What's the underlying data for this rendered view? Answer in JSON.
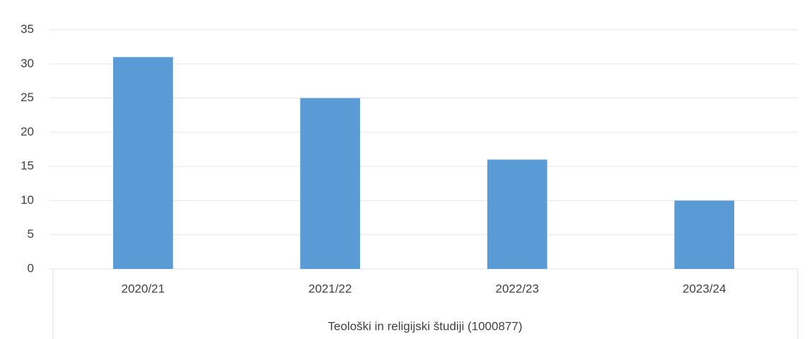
{
  "chart_data": {
    "type": "bar",
    "x_label": "Teološki in religijski študiji (1000877)",
    "categories": [
      "2020/21",
      "2021/22",
      "2022/23",
      "2023/24"
    ],
    "values": [
      31,
      25,
      16,
      10
    ],
    "color": "#5b9bd5",
    "ylim": [
      0,
      35
    ],
    "yticks": [
      0,
      5,
      10,
      15,
      20,
      25,
      30,
      35
    ],
    "grid": true
  }
}
